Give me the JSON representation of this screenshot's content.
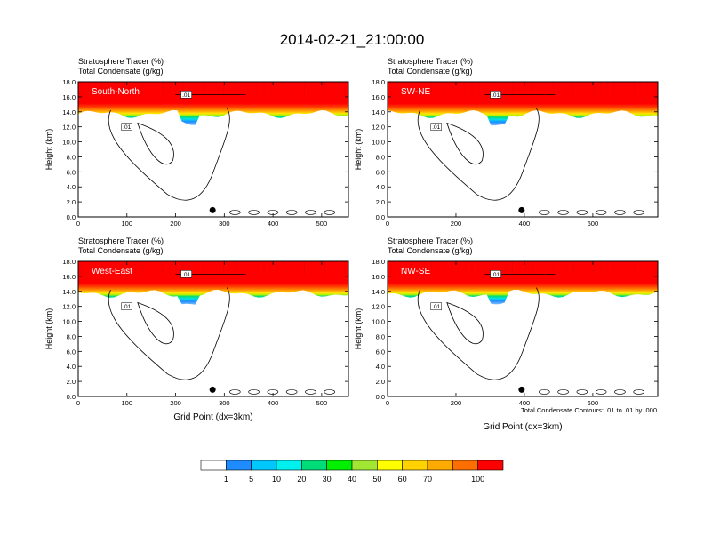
{
  "chart_data": {
    "type": "heatmap",
    "title": "2014-02-21_21:00:00",
    "ylabel": "Height (km)",
    "xlabel": "Grid Point (dx=3km)",
    "panel_header_line1": "Stratosphere Tracer   (%)",
    "panel_header_line2": "Total Condensate   (g/kg)",
    "footnote": "Total Condensate Contours: .01 to .01 by .000",
    "contour_label": ".01",
    "ylim": [
      0,
      18
    ],
    "yticks": [
      0,
      2,
      4,
      6,
      8,
      10,
      12,
      14,
      16,
      18
    ],
    "ytick_labels": [
      "0.0",
      "2.0",
      "4.0",
      "6.0",
      "8.0",
      "10.0",
      "12.0",
      "14.0",
      "16.0",
      "18.0"
    ],
    "panels": [
      {
        "name": "South-North",
        "xlim": [
          0,
          555
        ],
        "xticks": [
          0,
          100,
          200,
          300,
          400,
          500
        ],
        "xtick_labels": [
          "0",
          "100",
          "200",
          "300",
          "400",
          "500"
        ],
        "marker_x": 276
      },
      {
        "name": "SW-NE",
        "xlim": [
          0,
          790
        ],
        "xticks": [
          0,
          200,
          400,
          600
        ],
        "xtick_labels": [
          "0",
          "200",
          "400",
          "600"
        ],
        "marker_x": 392
      },
      {
        "name": "West-East",
        "xlim": [
          0,
          555
        ],
        "xticks": [
          0,
          100,
          200,
          300,
          400,
          500
        ],
        "xtick_labels": [
          "0",
          "100",
          "200",
          "300",
          "400",
          "500"
        ],
        "marker_x": 276
      },
      {
        "name": "NW-SE",
        "xlim": [
          0,
          790
        ],
        "xticks": [
          0,
          200,
          400,
          600
        ],
        "xtick_labels": [
          "0",
          "200",
          "400",
          "600"
        ],
        "marker_x": 392
      }
    ],
    "colorbar": {
      "levels": [
        "1",
        "5",
        "10",
        "20",
        "30",
        "40",
        "50",
        "60",
        "70",
        "100"
      ],
      "colors": [
        "#ffffff",
        "#1e8cff",
        "#00c8ff",
        "#00f0f0",
        "#00dc78",
        "#00f000",
        "#a0e632",
        "#ffff00",
        "#ffd200",
        "#ffaa00",
        "#ff6e00",
        "#ff0000"
      ]
    }
  },
  "colors": {
    "background": "#ffffff",
    "axis": "#000000",
    "contour": "#000000"
  }
}
